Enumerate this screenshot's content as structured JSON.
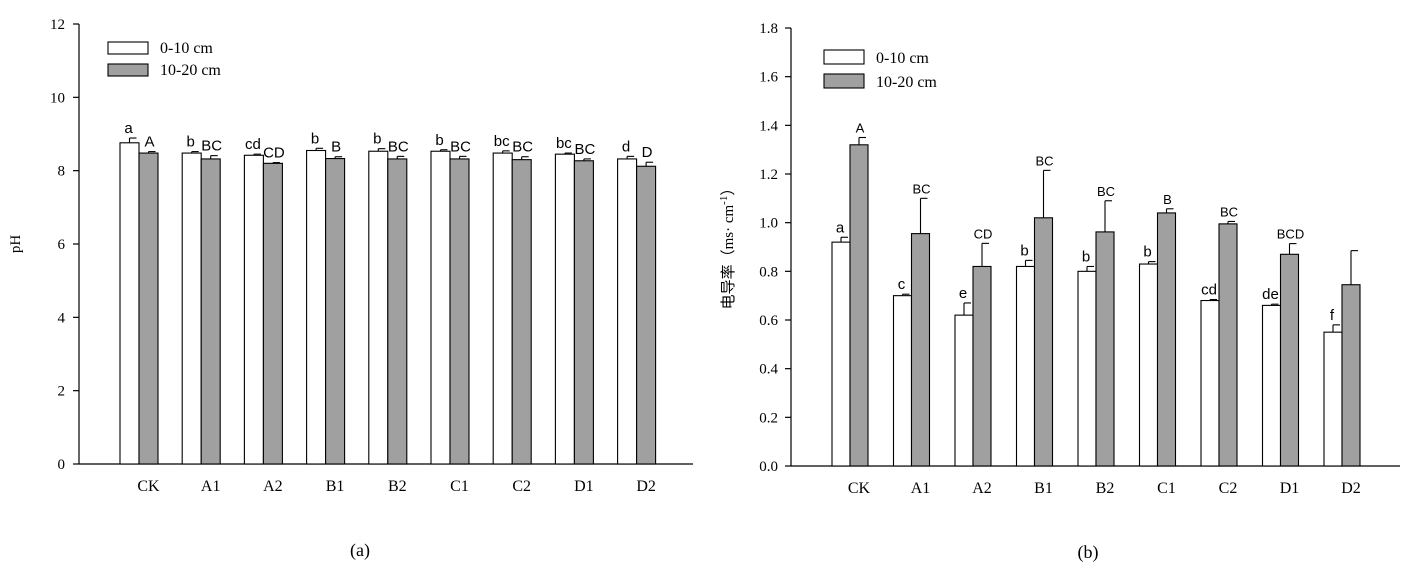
{
  "chart_data": [
    {
      "type": "bar",
      "panel_label": "(a)",
      "ylabel": "pH",
      "ylim": [
        0,
        12
      ],
      "yticks": [
        "0",
        "2",
        "4",
        "6",
        "8",
        "10",
        "12"
      ],
      "categories": [
        "CK",
        "A1",
        "A2",
        "B1",
        "B2",
        "C1",
        "C2",
        "D1",
        "D2"
      ],
      "legend": [
        "0-10 cm",
        "10-20 cm"
      ],
      "legend_position": "top-left",
      "series": [
        {
          "name": "0-10 cm",
          "color": "#ffffff",
          "values": [
            8.76,
            8.48,
            8.42,
            8.55,
            8.53,
            8.53,
            8.48,
            8.45,
            8.32
          ],
          "errors": [
            0.13,
            0.04,
            0.03,
            0.06,
            0.07,
            0.04,
            0.06,
            0.03,
            0.07
          ],
          "sig": [
            "a",
            "b",
            "cd",
            "b",
            "b",
            "b",
            "bc",
            "bc",
            "d"
          ]
        },
        {
          "name": "10-20 cm",
          "color": "#a0a0a0",
          "values": [
            8.48,
            8.32,
            8.2,
            8.33,
            8.32,
            8.32,
            8.3,
            8.27,
            8.12
          ],
          "errors": [
            0.04,
            0.09,
            0.02,
            0.05,
            0.07,
            0.07,
            0.08,
            0.05,
            0.11
          ],
          "sig": [
            "A",
            "BC",
            "CD",
            "B",
            "BC",
            "BC",
            "BC",
            "BC",
            "D"
          ]
        }
      ]
    },
    {
      "type": "bar",
      "panel_label": "(b)",
      "ylabel": "电导率（ms· cm",
      "ylabel_sup": "-1",
      "ylabel_end": "）",
      "ylim": [
        0,
        1.8
      ],
      "yticks": [
        "0.0",
        "0.2",
        "0.4",
        "0.6",
        "0.8",
        "1.0",
        "1.2",
        "1.4",
        "1.6",
        "1.8"
      ],
      "categories": [
        "CK",
        "A1",
        "A2",
        "B1",
        "B2",
        "C1",
        "C2",
        "D1",
        "D2"
      ],
      "legend": [
        "0-10 cm",
        "10-20 cm"
      ],
      "legend_position": "top-left",
      "series": [
        {
          "name": "0-10 cm",
          "color": "#ffffff",
          "values": [
            0.92,
            0.7,
            0.62,
            0.82,
            0.8,
            0.83,
            0.68,
            0.66,
            0.55
          ],
          "errors": [
            0.02,
            0.006,
            0.05,
            0.025,
            0.02,
            0.01,
            0.004,
            0.005,
            0.03
          ],
          "sig": [
            "a",
            "c",
            "e",
            "b",
            "b",
            "b",
            "cd",
            "de",
            "f"
          ]
        },
        {
          "name": "10-20 cm",
          "color": "#a0a0a0",
          "values": [
            1.32,
            0.955,
            0.82,
            1.02,
            0.962,
            1.04,
            0.995,
            0.87,
            0.745
          ],
          "errors": [
            0.03,
            0.145,
            0.095,
            0.195,
            0.128,
            0.017,
            0.01,
            0.044,
            0.14
          ],
          "sig": [
            "A",
            "BC",
            "CD",
            "BC",
            "BC",
            "B",
            "BC",
            "BCD",
            ""
          ]
        }
      ]
    }
  ]
}
